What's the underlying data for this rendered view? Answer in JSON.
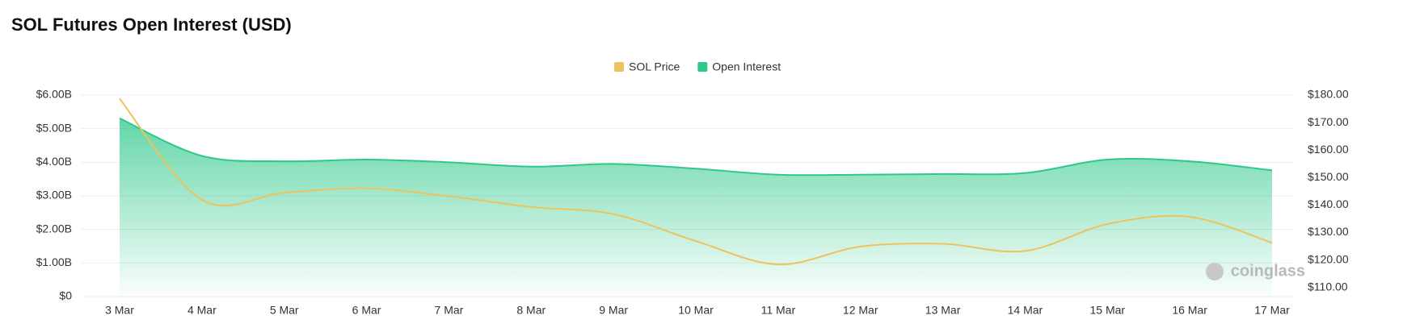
{
  "chart_data": {
    "type": "dual-axis-area-line",
    "title": "SOL Futures Open Interest (USD)",
    "watermark": "coinglass",
    "categories": [
      "3 Mar",
      "4 Mar",
      "5 Mar",
      "6 Mar",
      "7 Mar",
      "8 Mar",
      "9 Mar",
      "10 Mar",
      "11 Mar",
      "12 Mar",
      "13 Mar",
      "14 Mar",
      "15 Mar",
      "16 Mar",
      "17 Mar"
    ],
    "series": [
      {
        "name": "SOL Price",
        "color": "#ecc35c",
        "axis": "y2",
        "kind": "line",
        "values": [
          178.7,
          141.9,
          144.5,
          146.1,
          143.2,
          139.3,
          136.7,
          126.9,
          118.4,
          124.9,
          125.9,
          123.3,
          133.1,
          135.7,
          126.3
        ]
      },
      {
        "name": "Open Interest",
        "color": "#2ec98a",
        "axis": "y",
        "kind": "area",
        "values": [
          5310000000,
          4190000000,
          4030000000,
          4080000000,
          4000000000,
          3870000000,
          3950000000,
          3810000000,
          3630000000,
          3630000000,
          3650000000,
          3680000000,
          4080000000,
          4030000000,
          3760000000
        ]
      }
    ],
    "ylim": [
      0,
      6000000000
    ],
    "yticks": [
      {
        "value": 0,
        "label": "$0"
      },
      {
        "value": 1000000000,
        "label": "$1.00B"
      },
      {
        "value": 2000000000,
        "label": "$2.00B"
      },
      {
        "value": 3000000000,
        "label": "$3.00B"
      },
      {
        "value": 4000000000,
        "label": "$4.00B"
      },
      {
        "value": 5000000000,
        "label": "$5.00B"
      },
      {
        "value": 6000000000,
        "label": "$6.00B"
      }
    ],
    "y2lim": [
      106.7,
      180
    ],
    "y2ticks": [
      {
        "value": 110,
        "label": "$110.00"
      },
      {
        "value": 120,
        "label": "$120.00"
      },
      {
        "value": 130,
        "label": "$130.00"
      },
      {
        "value": 140,
        "label": "$140.00"
      },
      {
        "value": 150,
        "label": "$150.00"
      },
      {
        "value": 160,
        "label": "$160.00"
      },
      {
        "value": 170,
        "label": "$170.00"
      },
      {
        "value": 180,
        "label": "$180.00"
      }
    ],
    "grid": true,
    "legend": "top"
  }
}
